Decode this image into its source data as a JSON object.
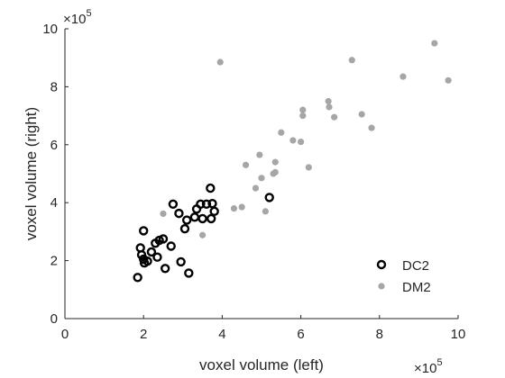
{
  "chart_data": {
    "type": "scatter",
    "xlabel": "voxel volume (left)",
    "ylabel": "voxel volume (right)",
    "x_exponent_label": {
      "base": "×10",
      "exp": "5"
    },
    "y_exponent_label": {
      "base": "×10",
      "exp": "5"
    },
    "xlim": [
      0,
      10
    ],
    "ylim": [
      0,
      10
    ],
    "xticks": [
      0,
      2,
      4,
      6,
      8,
      10
    ],
    "yticks": [
      0,
      2,
      4,
      6,
      8,
      10
    ],
    "grid": false,
    "legend_position": "bottom-right",
    "series": [
      {
        "name": "DC2",
        "marker": "hollow-circle",
        "color": "#000000",
        "points": [
          [
            1.85,
            1.42
          ],
          [
            2.0,
            3.03
          ],
          [
            1.92,
            2.44
          ],
          [
            1.95,
            2.2
          ],
          [
            2.0,
            2.05
          ],
          [
            2.02,
            1.92
          ],
          [
            2.1,
            1.98
          ],
          [
            2.2,
            2.3
          ],
          [
            2.3,
            2.6
          ],
          [
            2.4,
            2.7
          ],
          [
            2.5,
            2.75
          ],
          [
            2.35,
            2.12
          ],
          [
            2.55,
            1.73
          ],
          [
            2.7,
            2.5
          ],
          [
            2.75,
            3.95
          ],
          [
            2.9,
            3.63
          ],
          [
            2.95,
            1.96
          ],
          [
            3.05,
            3.1
          ],
          [
            3.1,
            3.4
          ],
          [
            3.15,
            1.57
          ],
          [
            3.3,
            3.5
          ],
          [
            3.35,
            3.78
          ],
          [
            3.45,
            3.95
          ],
          [
            3.5,
            3.45
          ],
          [
            3.6,
            3.95
          ],
          [
            3.7,
            4.5
          ],
          [
            3.72,
            3.45
          ],
          [
            3.75,
            3.97
          ],
          [
            3.8,
            3.7
          ],
          [
            5.2,
            4.18
          ]
        ]
      },
      {
        "name": "DM2",
        "marker": "filled-dot",
        "color": "#a6a6a6",
        "points": [
          [
            2.5,
            3.62
          ],
          [
            3.5,
            2.88
          ],
          [
            3.95,
            8.85
          ],
          [
            4.3,
            3.8
          ],
          [
            4.5,
            3.85
          ],
          [
            4.6,
            5.3
          ],
          [
            4.85,
            4.5
          ],
          [
            4.95,
            5.65
          ],
          [
            5.0,
            4.85
          ],
          [
            5.1,
            3.7
          ],
          [
            5.3,
            5.0
          ],
          [
            5.35,
            5.4
          ],
          [
            5.35,
            5.05
          ],
          [
            5.5,
            6.42
          ],
          [
            5.8,
            6.15
          ],
          [
            6.0,
            6.1
          ],
          [
            6.05,
            7.0
          ],
          [
            6.05,
            7.2
          ],
          [
            6.2,
            5.22
          ],
          [
            6.7,
            7.5
          ],
          [
            6.72,
            7.3
          ],
          [
            6.85,
            6.95
          ],
          [
            7.3,
            8.92
          ],
          [
            7.55,
            7.05
          ],
          [
            7.8,
            6.58
          ],
          [
            8.6,
            8.35
          ],
          [
            9.4,
            9.5
          ],
          [
            9.75,
            8.22
          ]
        ]
      }
    ]
  }
}
